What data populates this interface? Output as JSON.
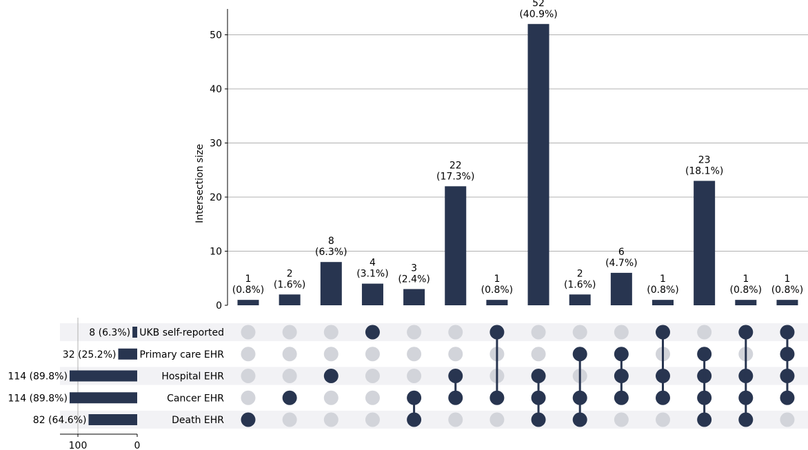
{
  "chart_data": {
    "type": "bar",
    "ylabel": "Intersection size",
    "ylim": [
      0,
      55
    ],
    "yticks": [
      0,
      10,
      20,
      30,
      40,
      50
    ],
    "grid": true,
    "colors": {
      "bar": "#283550",
      "dot_off": "#d2d4da",
      "stripe": "#f2f2f5",
      "grid": "#b0b0b0"
    },
    "intersections": [
      {
        "size": 1,
        "label": "(0.8%)",
        "members": [
          "Death EHR"
        ]
      },
      {
        "size": 2,
        "label": "(1.6%)",
        "members": [
          "Cancer EHR"
        ]
      },
      {
        "size": 8,
        "label": "(6.3%)",
        "members": [
          "Hospital EHR"
        ]
      },
      {
        "size": 4,
        "label": "(3.1%)",
        "members": [
          "UKB self-reported"
        ]
      },
      {
        "size": 3,
        "label": "(2.4%)",
        "members": [
          "Cancer EHR",
          "Death EHR"
        ]
      },
      {
        "size": 22,
        "label": "(17.3%)",
        "members": [
          "Hospital EHR",
          "Cancer EHR"
        ]
      },
      {
        "size": 1,
        "label": "(0.8%)",
        "members": [
          "UKB self-reported",
          "Cancer EHR"
        ]
      },
      {
        "size": 52,
        "label": "(40.9%)",
        "members": [
          "Hospital EHR",
          "Cancer EHR",
          "Death EHR"
        ]
      },
      {
        "size": 2,
        "label": "(1.6%)",
        "members": [
          "Primary care EHR",
          "Cancer EHR",
          "Death EHR"
        ]
      },
      {
        "size": 6,
        "label": "(4.7%)",
        "members": [
          "Primary care EHR",
          "Hospital EHR",
          "Cancer EHR"
        ]
      },
      {
        "size": 1,
        "label": "(0.8%)",
        "members": [
          "UKB self-reported",
          "Hospital EHR",
          "Cancer EHR"
        ]
      },
      {
        "size": 23,
        "label": "(18.1%)",
        "members": [
          "Primary care EHR",
          "Hospital EHR",
          "Cancer EHR",
          "Death EHR"
        ]
      },
      {
        "size": 1,
        "label": "(0.8%)",
        "members": [
          "UKB self-reported",
          "Hospital EHR",
          "Cancer EHR",
          "Death EHR"
        ]
      },
      {
        "size": 1,
        "label": "(0.8%)",
        "members": [
          "UKB self-reported",
          "Primary care EHR",
          "Hospital EHR",
          "Cancer EHR"
        ]
      }
    ],
    "sets": [
      {
        "name": "UKB self-reported",
        "size": 8,
        "label": "8 (6.3%)"
      },
      {
        "name": "Primary care EHR",
        "size": 32,
        "label": "32 (25.2%)"
      },
      {
        "name": "Hospital EHR",
        "size": 114,
        "label": "114 (89.8%)"
      },
      {
        "name": "Cancer EHR",
        "size": 114,
        "label": "114 (89.8%)"
      },
      {
        "name": "Death EHR",
        "size": 82,
        "label": "82 (64.6%)"
      }
    ],
    "set_size_ticks": [
      100,
      0
    ]
  }
}
